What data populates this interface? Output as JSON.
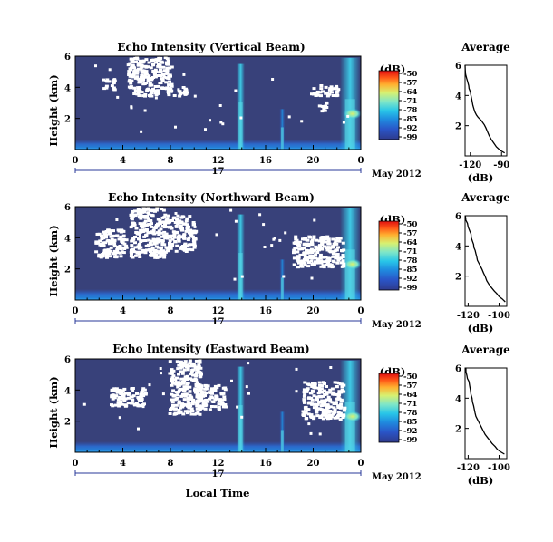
{
  "colors": {
    "background": "#38417a",
    "no_data": "#ffffff",
    "colormap": [
      "#2e3a8c",
      "#2a55c8",
      "#1f8fe0",
      "#29c6e8",
      "#7fe6c8",
      "#d8f070",
      "#ffb030",
      "#ff5818",
      "#e01010"
    ]
  },
  "x_axis": {
    "label": "Local Time",
    "ticks": [
      "0",
      "4",
      "8",
      "12",
      "16",
      "20",
      "0"
    ],
    "day": "17",
    "date": "May 2012"
  },
  "chart_data": [
    {
      "type": "heatmap",
      "title": "Echo Intensity (Vertical Beam)",
      "ylabel": "Height (km)",
      "xlim": [
        0,
        24
      ],
      "ylim": [
        0,
        6
      ],
      "yticks": [
        "6",
        "4",
        "2"
      ],
      "colorbar": {
        "label": "(dB)",
        "ticks": [
          "-50",
          "-57",
          "-64",
          "-71",
          "-78",
          "-85",
          "-92",
          "-99"
        ]
      },
      "features": {
        "convective_columns_hours": [
          13.9,
          17.4,
          23.1
        ],
        "surface_layer_top_km": 0.3,
        "no_data_blocks": [
          [
            2.2,
            3.2,
            3.9,
            4.6
          ],
          [
            4.3,
            8.0,
            4.0,
            6.0
          ],
          [
            4.8,
            9.3,
            3.5,
            4.1
          ],
          [
            19.7,
            22.0,
            3.5,
            4.2
          ],
          [
            20.4,
            21.0,
            2.5,
            3.2
          ]
        ]
      }
    },
    {
      "type": "heatmap",
      "title": "Echo Intensity (Northward Beam)",
      "ylabel": "Height (km)",
      "xlim": [
        0,
        24
      ],
      "ylim": [
        0,
        6
      ],
      "yticks": [
        "6",
        "4",
        "2"
      ],
      "colorbar": {
        "label": "(dB)",
        "ticks": [
          "-50",
          "-57",
          "-64",
          "-71",
          "-78",
          "-85",
          "-92",
          "-99"
        ]
      },
      "features": {
        "convective_columns_hours": [
          13.9,
          17.4,
          23.1
        ],
        "surface_layer_top_km": 0.35,
        "no_data_blocks": [
          [
            1.6,
            4.2,
            2.8,
            4.6
          ],
          [
            4.5,
            7.5,
            2.8,
            6.0
          ],
          [
            7.5,
            10.0,
            3.2,
            5.5
          ],
          [
            18.2,
            22.5,
            2.2,
            4.2
          ]
        ]
      }
    },
    {
      "type": "heatmap",
      "title": "Echo Intensity (Eastward Beam)",
      "ylabel": "Height (km)",
      "xlim": [
        0,
        24
      ],
      "ylim": [
        0,
        6
      ],
      "yticks": [
        "6",
        "4",
        "2"
      ],
      "colorbar": {
        "label": "(dB)",
        "ticks": [
          "-50",
          "-57",
          "-64",
          "-71",
          "-78",
          "-85",
          "-92",
          "-99"
        ]
      },
      "features": {
        "convective_columns_hours": [
          13.9,
          17.4,
          23.1
        ],
        "surface_layer_top_km": 0.35,
        "no_data_blocks": [
          [
            2.8,
            5.8,
            3.0,
            4.2
          ],
          [
            7.8,
            10.5,
            2.5,
            6.0
          ],
          [
            10.0,
            12.5,
            2.8,
            4.4
          ],
          [
            19.0,
            22.5,
            2.2,
            4.6
          ]
        ]
      }
    },
    {
      "type": "line",
      "title": "Average",
      "xlabel": "(dB)",
      "xticks": [
        "-120",
        "-90"
      ],
      "yticks": [
        "6",
        "4",
        "2"
      ],
      "xlim": [
        -125,
        -85
      ],
      "ylim": [
        0,
        6
      ],
      "x": [
        -125,
        -124.8,
        -124.5,
        -123.5,
        -122.5,
        -121.5,
        -121.2,
        -120,
        -119.5,
        -118.5,
        -117.5,
        -116.5,
        -115.5,
        -114,
        -112.5,
        -111,
        -109.5,
        -108,
        -106.5,
        -105,
        -103.5,
        -102,
        -100,
        -97.5,
        -95,
        -91,
        -87
      ],
      "y": [
        6,
        5.7,
        5.4,
        5.15,
        4.9,
        4.65,
        4.45,
        4.25,
        4.05,
        3.7,
        3.35,
        3.1,
        2.9,
        2.7,
        2.55,
        2.45,
        2.35,
        2.2,
        2.05,
        1.85,
        1.6,
        1.35,
        1.1,
        0.85,
        0.6,
        0.35,
        0.2
      ]
    },
    {
      "type": "line",
      "title": "Average",
      "xlabel": "(dB)",
      "xticks": [
        "-120",
        "-100"
      ],
      "yticks": [
        "6",
        "4",
        "2"
      ],
      "xlim": [
        -122,
        -95
      ],
      "ylim": [
        0,
        6
      ],
      "x": [
        -121.8,
        -121.5,
        -120.5,
        -120,
        -119,
        -118.2,
        -118,
        -117.2,
        -116.5,
        -116.3,
        -115.5,
        -115,
        -114.5,
        -114,
        -113,
        -112,
        -111,
        -110,
        -109,
        -108,
        -106.5,
        -105,
        -103,
        -101.5,
        -100,
        -98,
        -96
      ],
      "y": [
        6,
        5.7,
        5.5,
        5.25,
        5.0,
        4.8,
        4.55,
        4.3,
        4.1,
        3.9,
        3.7,
        3.5,
        3.3,
        3.05,
        2.85,
        2.65,
        2.45,
        2.2,
        2.0,
        1.7,
        1.45,
        1.25,
        1.0,
        0.85,
        0.65,
        0.5,
        0.3
      ]
    },
    {
      "type": "line",
      "title": "Average",
      "xlabel": "(dB)",
      "xticks": [
        "-120",
        "-100"
      ],
      "yticks": [
        "6",
        "4",
        "2"
      ],
      "xlim": [
        -122,
        -95
      ],
      "ylim": [
        0,
        6
      ],
      "x": [
        -121.5,
        -121.4,
        -120.8,
        -120.5,
        -119.5,
        -119,
        -118.5,
        -118.2,
        -117.5,
        -117.2,
        -116.5,
        -116,
        -115.5,
        -115,
        -114,
        -113,
        -112,
        -111,
        -110,
        -109,
        -107.5,
        -106,
        -104.5,
        -102.5,
        -101,
        -99,
        -96.5
      ],
      "y": [
        6,
        5.75,
        5.5,
        5.3,
        5.1,
        4.8,
        4.5,
        4.25,
        4.0,
        3.75,
        3.5,
        3.25,
        3.0,
        2.8,
        2.6,
        2.4,
        2.2,
        2.0,
        1.8,
        1.6,
        1.4,
        1.2,
        1.0,
        0.8,
        0.6,
        0.45,
        0.3
      ]
    }
  ]
}
